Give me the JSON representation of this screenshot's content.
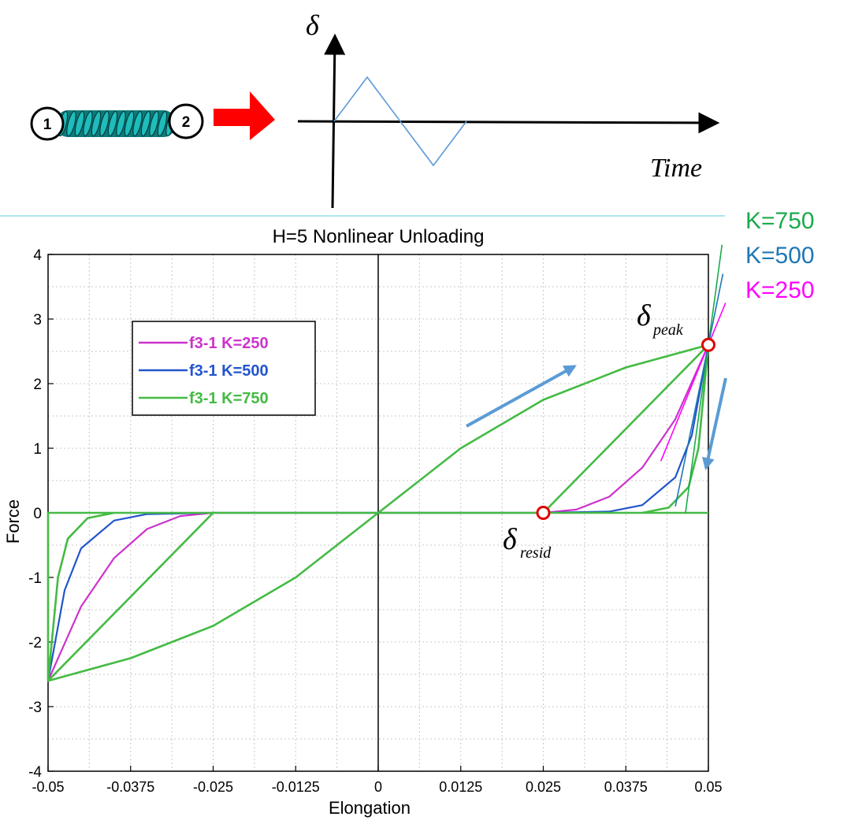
{
  "schematic": {
    "node_1": "1",
    "node_2": "2",
    "delta_label": "δ",
    "time_label": "Time",
    "spring_color": "#1fbcbc",
    "arrow_color": "#ff0000",
    "input_color": "#5b9bd5",
    "input_signal": [
      {
        "t": 0,
        "d": 0
      },
      {
        "t": 1,
        "d": 1
      },
      {
        "t": 3,
        "d": -1
      },
      {
        "t": 4,
        "d": 0
      }
    ]
  },
  "annotations": {
    "delta_symbol": "δ",
    "peak_sub": "peak",
    "resid_sub": "resid",
    "k_labels": [
      {
        "text": "K=750",
        "color": "#1aab4c"
      },
      {
        "text": "K=500",
        "color": "#1f77b4"
      },
      {
        "text": "K=250",
        "color": "#ff00ff"
      }
    ],
    "arrow_color": "#5b9bd5",
    "marker_color": "#e00000"
  },
  "chart_data": {
    "type": "line",
    "title": "H=5 Nonlinear Unloading",
    "xlabel": "Elongation",
    "ylabel": "Force",
    "xlim": [
      -0.05,
      0.05
    ],
    "ylim": [
      -4,
      4
    ],
    "xticks": [
      -0.05,
      -0.0375,
      -0.025,
      -0.0125,
      0,
      0.0125,
      0.025,
      0.0375,
      0.05
    ],
    "xtick_labels": [
      "-0.05",
      "-0.0375",
      "-0.025",
      "-0.0125",
      "0",
      "0.0125",
      "0.025",
      "0.0375",
      "0.05"
    ],
    "yticks": [
      -4,
      -3,
      -2,
      -1,
      0,
      1,
      2,
      3,
      4
    ],
    "ytick_labels": [
      "-4",
      "-3",
      "-2",
      "-1",
      "0",
      "1",
      "2",
      "3",
      "4"
    ],
    "grid": true,
    "legend_position": "upper-left",
    "series": [
      {
        "name": "f3-1 K=250",
        "color": "#cc33cc",
        "points": [
          [
            0.025,
            0
          ],
          [
            0.03,
            0.05
          ],
          [
            0.035,
            0.25
          ],
          [
            0.04,
            0.7
          ],
          [
            0.045,
            1.45
          ],
          [
            0.05,
            2.6
          ],
          [
            0.045,
            1.45
          ],
          [
            0.04,
            0.7
          ],
          [
            0.035,
            0.25
          ],
          [
            0.03,
            0.05
          ],
          [
            0.025,
            0
          ],
          [
            -0.025,
            0
          ],
          [
            -0.03,
            -0.05
          ],
          [
            -0.035,
            -0.25
          ],
          [
            -0.04,
            -0.7
          ],
          [
            -0.045,
            -1.45
          ],
          [
            -0.05,
            -2.6
          ],
          [
            -0.045,
            -1.45
          ],
          [
            -0.04,
            -0.7
          ],
          [
            -0.035,
            -0.25
          ],
          [
            -0.03,
            -0.05
          ],
          [
            -0.025,
            0
          ]
        ]
      },
      {
        "name": "f3-1 K=500",
        "color": "#2255cc",
        "points": [
          [
            0.025,
            0
          ],
          [
            0.035,
            0.02
          ],
          [
            0.04,
            0.12
          ],
          [
            0.045,
            0.55
          ],
          [
            0.0475,
            1.2
          ],
          [
            0.05,
            2.6
          ],
          [
            0.0475,
            1.2
          ],
          [
            0.045,
            0.55
          ],
          [
            0.04,
            0.12
          ],
          [
            0.035,
            0.02
          ],
          [
            0.025,
            0
          ],
          [
            -0.025,
            0
          ],
          [
            -0.035,
            -0.02
          ],
          [
            -0.04,
            -0.12
          ],
          [
            -0.045,
            -0.55
          ],
          [
            -0.0475,
            -1.2
          ],
          [
            -0.05,
            -2.6
          ],
          [
            -0.0475,
            -1.2
          ],
          [
            -0.045,
            -0.55
          ],
          [
            -0.04,
            -0.12
          ],
          [
            -0.035,
            -0.02
          ],
          [
            -0.025,
            0
          ]
        ]
      },
      {
        "name": "f3-1 K=750",
        "color": "#44bb44",
        "points": [
          [
            0,
            0
          ],
          [
            0.0125,
            1.0
          ],
          [
            0.025,
            1.75
          ],
          [
            0.0375,
            2.25
          ],
          [
            0.05,
            2.6
          ],
          [
            0.025,
            0
          ],
          [
            0.04,
            0
          ],
          [
            0.044,
            0.08
          ],
          [
            0.047,
            0.4
          ],
          [
            0.0485,
            1.0
          ],
          [
            0.05,
            2.6
          ],
          [
            0.0485,
            1.0
          ],
          [
            0.047,
            0.4
          ],
          [
            0.044,
            0.08
          ],
          [
            0.04,
            0
          ],
          [
            -0.05,
            0
          ],
          [
            -0.05,
            -2.6
          ],
          [
            -0.0375,
            -2.25
          ],
          [
            -0.025,
            -1.75
          ],
          [
            -0.0125,
            -1.0
          ],
          [
            0,
            0
          ],
          [
            -0.025,
            0
          ],
          [
            -0.05,
            -2.6
          ],
          [
            -0.0485,
            -1.0
          ],
          [
            -0.047,
            -0.4
          ],
          [
            -0.044,
            -0.08
          ],
          [
            -0.04,
            0
          ],
          [
            -0.05,
            0
          ],
          [
            0.05,
            0
          ]
        ]
      }
    ],
    "tangents": [
      {
        "name": "K=750",
        "color": "#1aab4c",
        "slope": 750
      },
      {
        "name": "K=500",
        "color": "#1f77b4",
        "slope": 500
      },
      {
        "name": "K=250",
        "color": "#ff00ff",
        "slope": 250
      }
    ],
    "markers": [
      {
        "name": "delta-peak",
        "x": 0.05,
        "y": 2.6
      },
      {
        "name": "delta-resid",
        "x": 0.025,
        "y": 0
      }
    ]
  }
}
